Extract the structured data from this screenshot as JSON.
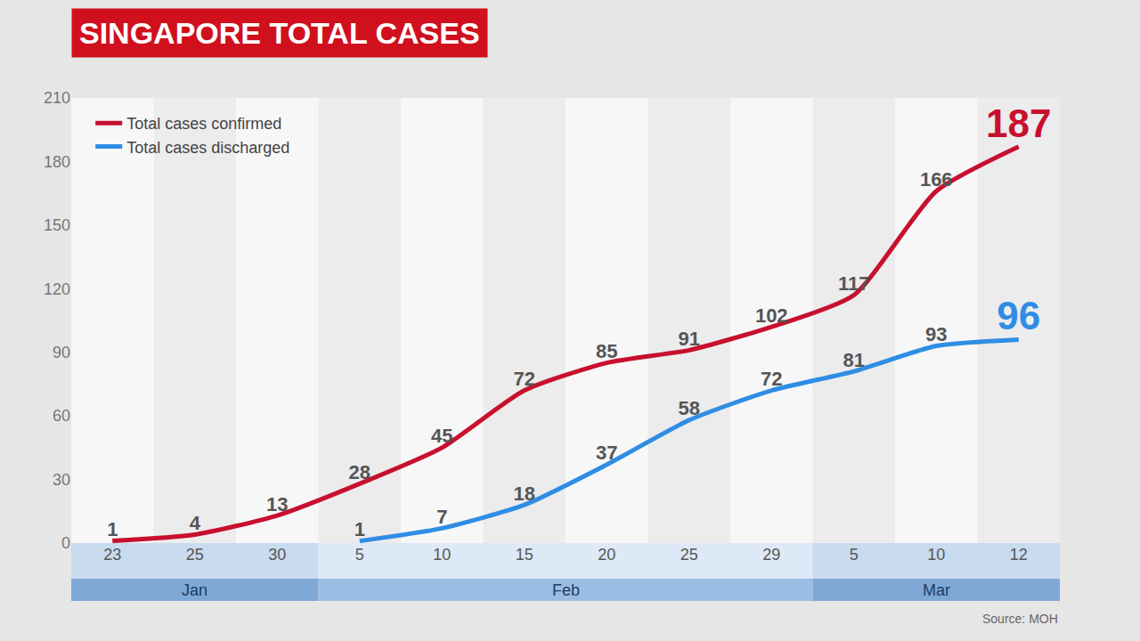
{
  "chart_data": {
    "type": "line",
    "title": "SINGAPORE TOTAL CASES",
    "categories": [
      "23",
      "25",
      "30",
      "5",
      "10",
      "15",
      "20",
      "25",
      "29",
      "5",
      "10",
      "12"
    ],
    "months": [
      "Jan",
      "Jan",
      "Jan",
      "Feb",
      "Feb",
      "Feb",
      "Feb",
      "Feb",
      "Feb",
      "Mar",
      "Mar",
      "Mar"
    ],
    "series": [
      {
        "name": "Total cases confirmed",
        "color": "#c8102e",
        "values": [
          1,
          4,
          13,
          28,
          45,
          72,
          85,
          91,
          102,
          117,
          166,
          187
        ]
      },
      {
        "name": "Total cases discharged",
        "color": "#2f8de4",
        "values": [
          null,
          null,
          null,
          1,
          7,
          18,
          37,
          58,
          72,
          81,
          93,
          96
        ]
      }
    ],
    "ylim": [
      0,
      210
    ],
    "yticks": [
      0,
      30,
      60,
      90,
      120,
      150,
      180,
      210
    ],
    "grid": false,
    "legend": "top left",
    "data_labels": true,
    "source": "Source: MOH"
  }
}
